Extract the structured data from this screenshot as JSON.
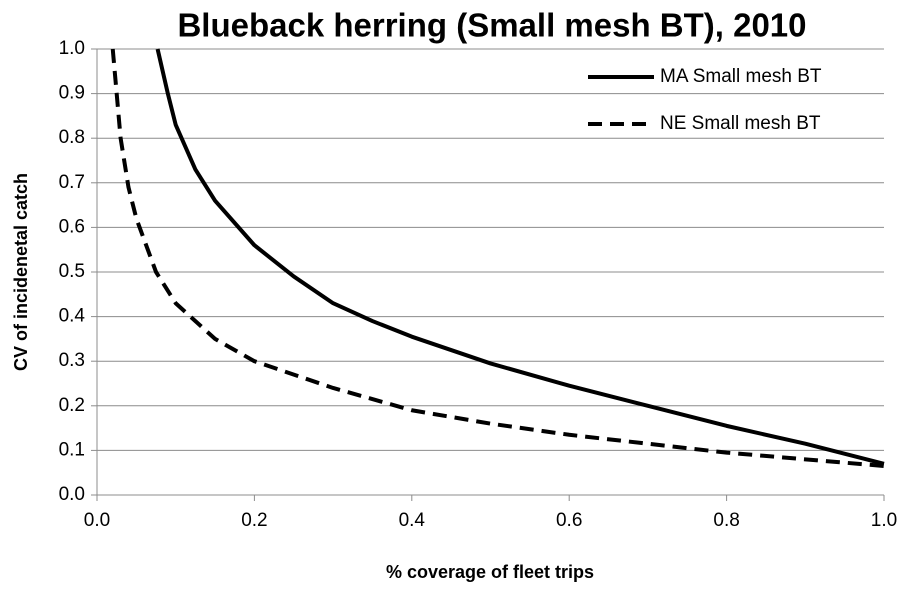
{
  "chart_data": {
    "type": "line",
    "title": "Blueback herring (Small mesh BT), 2010",
    "xlabel": "% coverage of fleet trips",
    "ylabel": "CV of incidenetal catch",
    "xlim": [
      0,
      1
    ],
    "ylim": [
      0,
      1
    ],
    "xticks": [
      {
        "value": 0,
        "label": "0.0"
      },
      0.2,
      0.4,
      0.6,
      0.8,
      {
        "value": 1,
        "label": "1.0"
      }
    ],
    "yticks": [
      {
        "value": 0,
        "label": "0.0"
      },
      0.1,
      0.2,
      0.3,
      0.4,
      0.5,
      0.6,
      0.7,
      0.8,
      0.9,
      {
        "value": 1,
        "label": "1.0"
      }
    ],
    "grid": true,
    "legend": "upper right",
    "series": [
      {
        "name": "MA Small mesh BT",
        "color": "#000000",
        "dash": "solid",
        "x": [
          0.077,
          0.09,
          0.1,
          0.125,
          0.15,
          0.2,
          0.25,
          0.3,
          0.35,
          0.4,
          0.5,
          0.6,
          0.7,
          0.8,
          0.9,
          1.0
        ],
        "values": [
          1.0,
          0.9,
          0.83,
          0.73,
          0.66,
          0.56,
          0.49,
          0.43,
          0.39,
          0.355,
          0.295,
          0.245,
          0.2,
          0.155,
          0.115,
          0.07
        ]
      },
      {
        "name": "NE Small mesh BT",
        "color": "#000000",
        "dash": "dashed",
        "x": [
          0.02,
          0.03,
          0.04,
          0.05,
          0.075,
          0.1,
          0.15,
          0.2,
          0.3,
          0.4,
          0.5,
          0.6,
          0.7,
          0.8,
          0.9,
          1.0
        ],
        "values": [
          1.0,
          0.8,
          0.69,
          0.62,
          0.5,
          0.43,
          0.35,
          0.3,
          0.24,
          0.19,
          0.16,
          0.135,
          0.115,
          0.095,
          0.08,
          0.065
        ]
      }
    ]
  }
}
